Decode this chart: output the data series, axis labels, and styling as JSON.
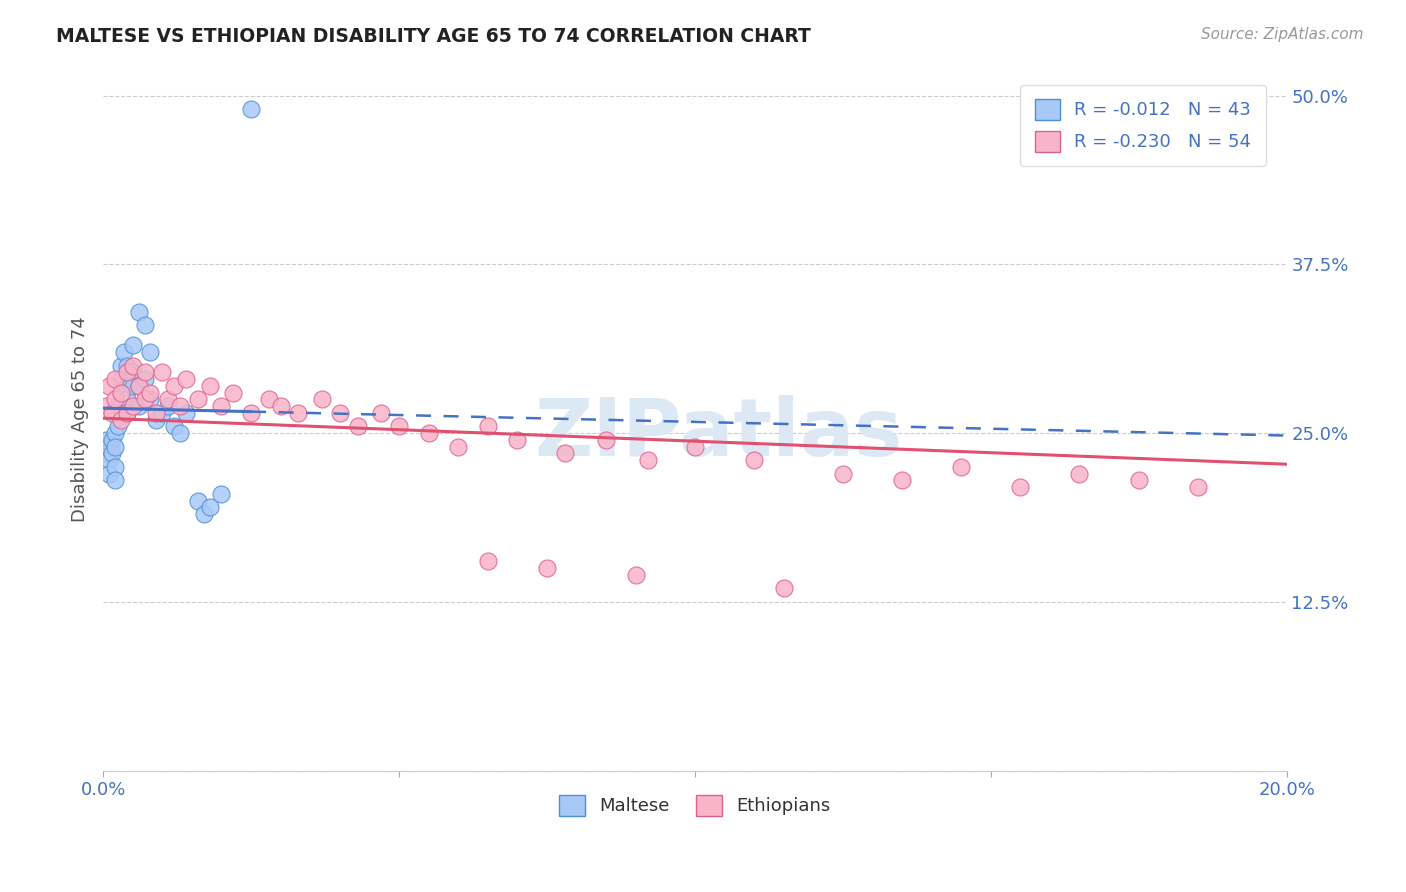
{
  "title": "MALTESE VS ETHIOPIAN DISABILITY AGE 65 TO 74 CORRELATION CHART",
  "ylabel": "Disability Age 65 to 74",
  "source_text": "Source: ZipAtlas.com",
  "watermark_text": "ZIPatlas",
  "legend_label1": "Maltese",
  "legend_label2": "Ethiopians",
  "r1": -0.012,
  "n1": 43,
  "r2": -0.23,
  "n2": 54,
  "color1_fill": "#a8c8f8",
  "color1_edge": "#5090d0",
  "color2_fill": "#f8b4c8",
  "color2_edge": "#e06090",
  "line1_color": "#4472c4",
  "line2_color": "#e05070",
  "yticks": [
    0.0,
    0.125,
    0.25,
    0.375,
    0.5
  ],
  "ytick_labels": [
    "",
    "12.5%",
    "25.0%",
    "37.5%",
    "50.0%"
  ],
  "xticks": [
    0.0,
    0.05,
    0.1,
    0.15,
    0.2
  ],
  "xtick_labels": [
    "0.0%",
    "",
    "",
    "",
    "20.0%"
  ],
  "xlim": [
    0.0,
    0.2
  ],
  "ylim": [
    0.0,
    0.52
  ],
  "maltese_x": [
    0.0005,
    0.0005,
    0.001,
    0.001,
    0.001,
    0.0015,
    0.0015,
    0.002,
    0.002,
    0.002,
    0.002,
    0.0025,
    0.0025,
    0.003,
    0.003,
    0.003,
    0.003,
    0.0035,
    0.004,
    0.004,
    0.004,
    0.004,
    0.005,
    0.005,
    0.005,
    0.006,
    0.006,
    0.006,
    0.007,
    0.007,
    0.008,
    0.008,
    0.009,
    0.01,
    0.011,
    0.012,
    0.013,
    0.014,
    0.016,
    0.017,
    0.018,
    0.02,
    0.025
  ],
  "maltese_y": [
    0.245,
    0.235,
    0.24,
    0.23,
    0.22,
    0.245,
    0.235,
    0.25,
    0.24,
    0.225,
    0.215,
    0.27,
    0.255,
    0.3,
    0.29,
    0.28,
    0.265,
    0.31,
    0.3,
    0.285,
    0.275,
    0.265,
    0.295,
    0.285,
    0.315,
    0.27,
    0.285,
    0.34,
    0.29,
    0.33,
    0.275,
    0.31,
    0.26,
    0.265,
    0.27,
    0.255,
    0.25,
    0.265,
    0.2,
    0.19,
    0.195,
    0.205,
    0.49
  ],
  "ethiopian_x": [
    0.0005,
    0.001,
    0.0015,
    0.002,
    0.002,
    0.003,
    0.003,
    0.004,
    0.004,
    0.005,
    0.005,
    0.006,
    0.007,
    0.007,
    0.008,
    0.009,
    0.01,
    0.011,
    0.012,
    0.013,
    0.014,
    0.016,
    0.018,
    0.02,
    0.022,
    0.025,
    0.028,
    0.03,
    0.033,
    0.037,
    0.04,
    0.043,
    0.047,
    0.05,
    0.055,
    0.06,
    0.065,
    0.07,
    0.078,
    0.085,
    0.092,
    0.1,
    0.11,
    0.125,
    0.135,
    0.145,
    0.155,
    0.165,
    0.175,
    0.185,
    0.065,
    0.075,
    0.09,
    0.115
  ],
  "ethiopian_y": [
    0.27,
    0.285,
    0.265,
    0.29,
    0.275,
    0.28,
    0.26,
    0.295,
    0.265,
    0.3,
    0.27,
    0.285,
    0.275,
    0.295,
    0.28,
    0.265,
    0.295,
    0.275,
    0.285,
    0.27,
    0.29,
    0.275,
    0.285,
    0.27,
    0.28,
    0.265,
    0.275,
    0.27,
    0.265,
    0.275,
    0.265,
    0.255,
    0.265,
    0.255,
    0.25,
    0.24,
    0.255,
    0.245,
    0.235,
    0.245,
    0.23,
    0.24,
    0.23,
    0.22,
    0.215,
    0.225,
    0.21,
    0.22,
    0.215,
    0.21,
    0.155,
    0.15,
    0.145,
    0.135
  ],
  "bg_color": "#ffffff",
  "grid_color": "#cccccc",
  "tick_color": "#4472c4",
  "label_color": "#555555",
  "watermark_color": "#dde8f5"
}
